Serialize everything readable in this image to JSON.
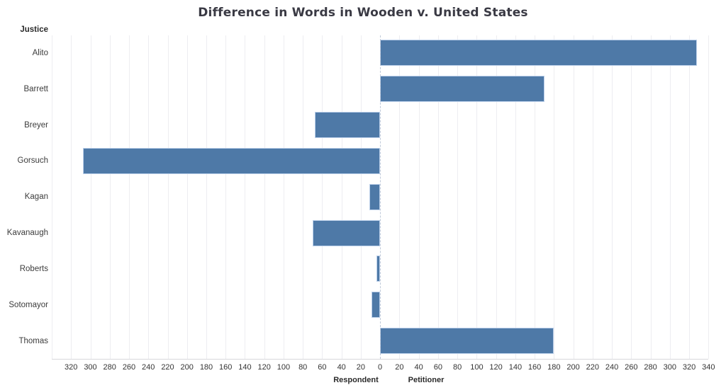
{
  "chart_data": {
    "type": "bar",
    "variant": "diverging-horizontal",
    "title": "Difference in Words in Wooden v. United States",
    "category_axis_title": "Justice",
    "categories": [
      "Alito",
      "Barrett",
      "Breyer",
      "Gorsuch",
      "Kagan",
      "Kavanaugh",
      "Roberts",
      "Sotomayor",
      "Thomas"
    ],
    "values": [
      328,
      170,
      -68,
      -308,
      -11,
      -70,
      -4,
      -9,
      180
    ],
    "value_sign_meaning": {
      "negative": "Respondent (left of zero)",
      "positive": "Petitioner (right of zero)"
    },
    "x_axis": {
      "min": -340,
      "max": 340,
      "tick_step": 20,
      "tick_values": [
        -320,
        -300,
        -280,
        -260,
        -240,
        -220,
        -200,
        -180,
        -160,
        -140,
        -120,
        -100,
        -80,
        -60,
        -40,
        -20,
        0,
        20,
        40,
        60,
        80,
        100,
        120,
        140,
        160,
        180,
        200,
        220,
        240,
        260,
        280,
        300,
        320,
        340
      ],
      "tick_labels": [
        "320",
        "300",
        "280",
        "260",
        "240",
        "220",
        "200",
        "180",
        "160",
        "140",
        "120",
        "100",
        "80",
        "60",
        "40",
        "20",
        "0",
        "20",
        "40",
        "60",
        "80",
        "100",
        "120",
        "140",
        "160",
        "180",
        "200",
        "220",
        "240",
        "260",
        "280",
        "300",
        "320",
        "340"
      ],
      "left_section_title": "Respondent",
      "right_section_title": "Petitioner",
      "grid": true
    },
    "legend": "none",
    "colors": {
      "bar_fill": "#4e79a7",
      "bar_border": "#bcd0ea",
      "gridline": "#ededf1",
      "zero_line": "#bfc9d9",
      "axis_line": "#d8d8dc",
      "title_text": "#3a3a44",
      "label_text": "#333333"
    }
  }
}
